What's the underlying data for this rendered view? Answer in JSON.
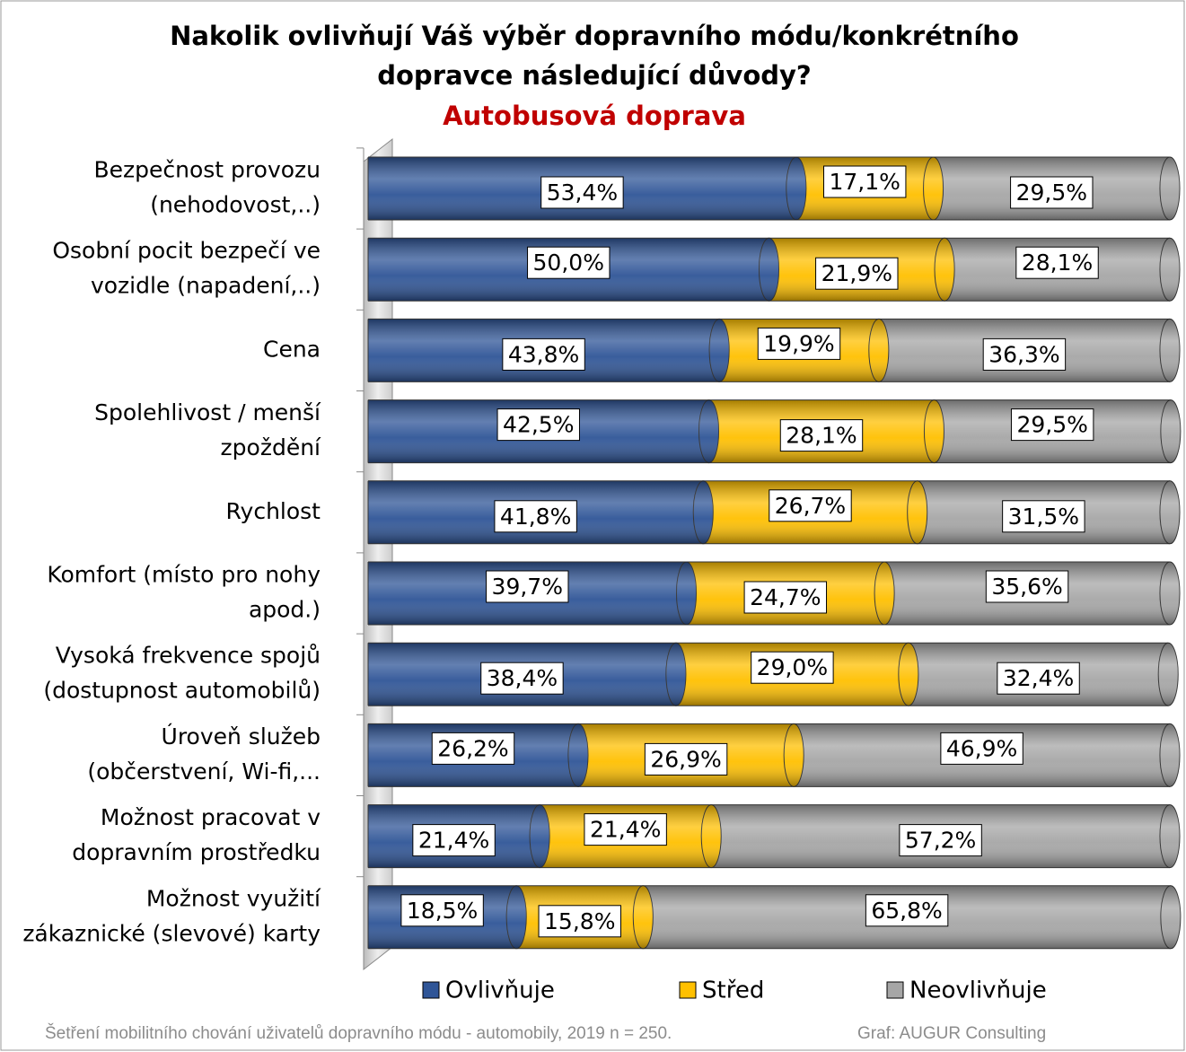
{
  "chart_data": {
    "type": "bar",
    "orientation": "horizontal",
    "stacked": true,
    "title": [
      "Nakolik ovlivňují Váš výběr dopravního módu/konkrétního",
      "dopravce následující důvody?"
    ],
    "subtitle": "Autobusová doprava",
    "categories": [
      [
        "Bezpečnost provozu",
        "(nehodovost,..)"
      ],
      [
        "Osobní pocit bezpečí ve",
        "vozidle (napadení,..)"
      ],
      [
        "Cena"
      ],
      [
        "Spolehlivost / menší",
        "zpoždění"
      ],
      [
        "Rychlost"
      ],
      [
        "Komfort (místo pro nohy",
        "apod.)"
      ],
      [
        "Vysoká frekvence spojů",
        "(dostupnost automobilů)"
      ],
      [
        "Úroveň služeb",
        "(občerstvení, Wi-fi,..."
      ],
      [
        "Možnost pracovat v",
        "dopravním prostředku"
      ],
      [
        "Možnost využití",
        "zákaznické (slevové) karty"
      ]
    ],
    "series": [
      {
        "name": "Ovlivňuje",
        "color": "#2f5597",
        "values": [
          53.4,
          50.0,
          43.8,
          42.5,
          41.8,
          39.7,
          38.4,
          26.2,
          21.4,
          18.5
        ],
        "value_labels": [
          "53,4%",
          "50,0%",
          "43,8%",
          "42,5%",
          "41,8%",
          "39,7%",
          "38,4%",
          "26,2%",
          "21,4%",
          "18,5%"
        ]
      },
      {
        "name": "Střed",
        "color": "#ffc000",
        "values": [
          17.1,
          21.9,
          19.9,
          28.1,
          26.7,
          24.7,
          29.0,
          26.9,
          21.4,
          15.8
        ],
        "value_labels": [
          "17,1%",
          "21,9%",
          "19,9%",
          "28,1%",
          "26,7%",
          "24,7%",
          "29,0%",
          "26,9%",
          "21,4%",
          "15,8%"
        ]
      },
      {
        "name": "Neovlivňuje",
        "color": "#a6a6a6",
        "values": [
          29.5,
          28.1,
          36.3,
          29.5,
          31.5,
          35.6,
          32.4,
          46.9,
          57.2,
          65.8
        ],
        "value_labels": [
          "29,5%",
          "28,1%",
          "36,3%",
          "29,5%",
          "31,5%",
          "35,6%",
          "32,4%",
          "46,9%",
          "57,2%",
          "65,8%"
        ]
      }
    ],
    "xlim": [
      0,
      100
    ],
    "notes": [
      "Šetření mobilitního chování uživatelů dopravního módu - automobily, 2019 n = 250.",
      "Graf: AUGUR  Consulting"
    ]
  }
}
